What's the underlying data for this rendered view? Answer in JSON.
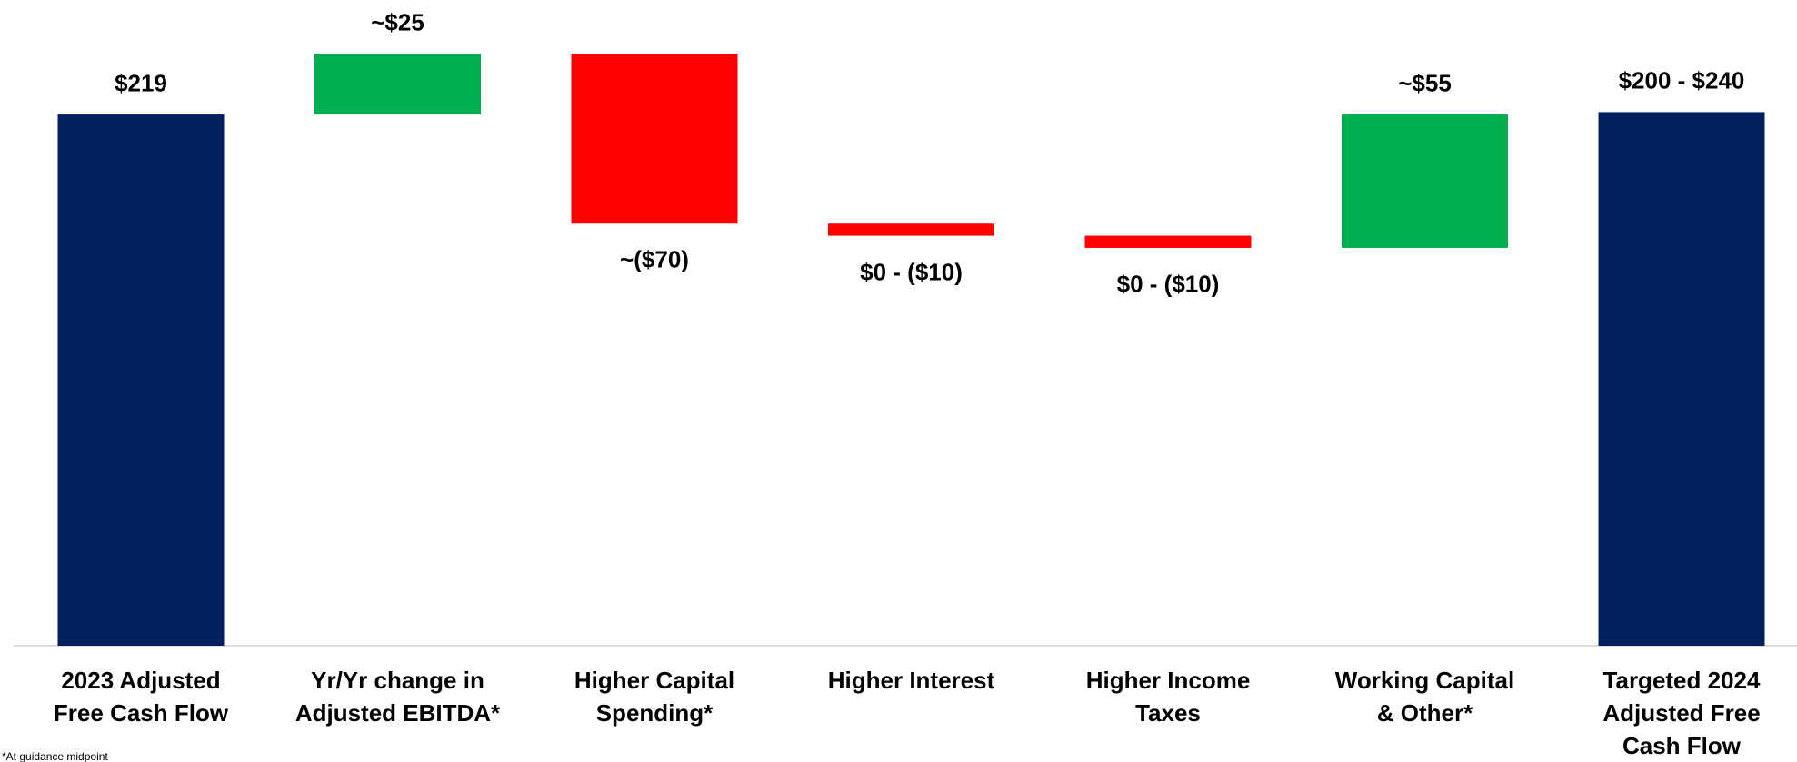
{
  "chart_data": {
    "type": "waterfall",
    "categories": [
      "2023 Adjusted\nFree Cash Flow",
      "Yr/Yr change in\nAdjusted EBITDA*",
      "Higher Capital\nSpending*",
      "Higher Interest",
      "Higher Income\nTaxes",
      "Working Capital\n& Other*",
      "Targeted 2024\nAdjusted Free\nCash Flow"
    ],
    "measures": [
      "total",
      "relative",
      "relative",
      "relative",
      "relative",
      "relative",
      "total"
    ],
    "values": [
      219,
      25,
      -70,
      -5,
      -5,
      55,
      220
    ],
    "value_labels": [
      "$219",
      "~$25",
      "~($70)",
      "$0 - ($10)",
      "$0 - ($10)",
      "~$55",
      "$200 - $240"
    ],
    "colors": [
      "#002060",
      "#00b050",
      "#ff0000",
      "#ff0000",
      "#ff0000",
      "#00b050",
      "#002060"
    ],
    "footnote": "*At guidance midpoint"
  }
}
